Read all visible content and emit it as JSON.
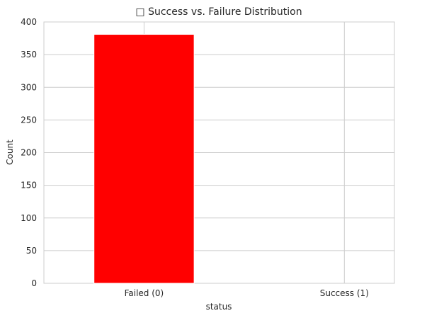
{
  "chart_data": {
    "type": "bar",
    "title": "□ Success vs. Failure Distribution",
    "xlabel": "status",
    "ylabel": "Count",
    "categories": [
      "Failed (0)",
      "Success (1)"
    ],
    "values": [
      381,
      0
    ],
    "ylim": [
      0,
      400
    ],
    "yticks": [
      0,
      50,
      100,
      150,
      200,
      250,
      300,
      350,
      400
    ],
    "grid": true,
    "legend": "none",
    "bar_color": "#ff0000",
    "grid_color": "#cccccc"
  }
}
